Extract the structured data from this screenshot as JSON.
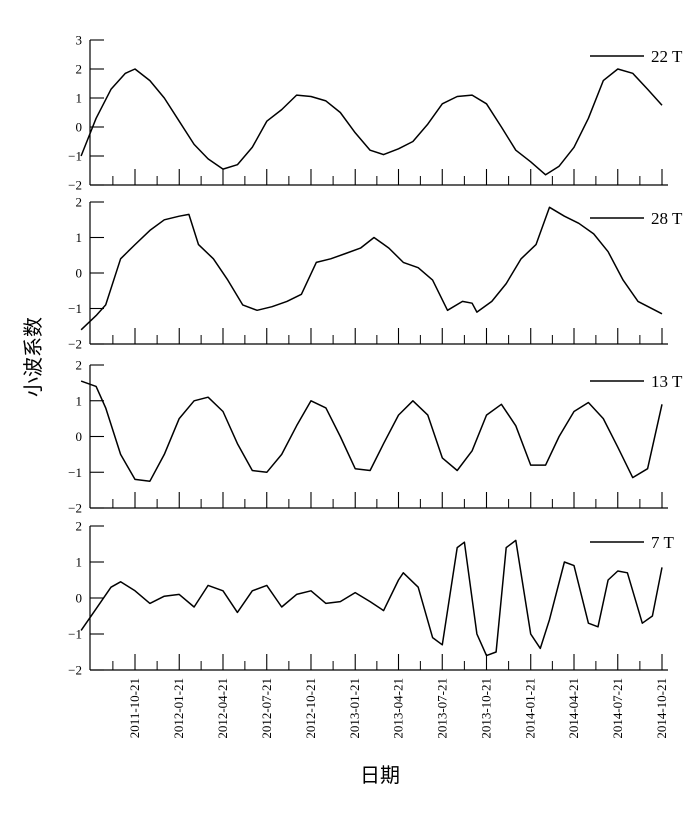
{
  "chart_data": {
    "type": "line",
    "xlabel": "日期",
    "ylabel": "小波系数",
    "x_ticks": [
      "2011-10-21",
      "2012-01-21",
      "2012-04-21",
      "2012-07-21",
      "2012-10-21",
      "2013-01-21",
      "2013-04-21",
      "2013-07-21",
      "2013-10-21",
      "2014-01-21",
      "2014-04-21",
      "2014-07-21",
      "2014-10-21"
    ],
    "x_range": [
      "2011-07-01",
      "2014-11-01"
    ],
    "legend_position": "top-right",
    "panels": [
      {
        "series_name": "22 T",
        "ylim": [
          -2,
          3
        ],
        "yticks": [
          -2,
          -1,
          0,
          1,
          2,
          3
        ],
        "points": [
          [
            "2011-07-01",
            -1.0
          ],
          [
            "2011-08-01",
            0.3
          ],
          [
            "2011-09-01",
            1.3
          ],
          [
            "2011-10-01",
            1.85
          ],
          [
            "2011-10-21",
            2.0
          ],
          [
            "2011-11-21",
            1.6
          ],
          [
            "2011-12-21",
            1.0
          ],
          [
            "2012-01-21",
            0.2
          ],
          [
            "2012-02-21",
            -0.6
          ],
          [
            "2012-03-21",
            -1.1
          ],
          [
            "2012-04-21",
            -1.45
          ],
          [
            "2012-05-21",
            -1.3
          ],
          [
            "2012-06-21",
            -0.7
          ],
          [
            "2012-07-21",
            0.2
          ],
          [
            "2012-08-21",
            0.6
          ],
          [
            "2012-09-21",
            1.1
          ],
          [
            "2012-10-21",
            1.05
          ],
          [
            "2012-11-21",
            0.9
          ],
          [
            "2012-12-21",
            0.5
          ],
          [
            "2013-01-21",
            -0.2
          ],
          [
            "2013-02-21",
            -0.8
          ],
          [
            "2013-03-21",
            -0.95
          ],
          [
            "2013-04-21",
            -0.75
          ],
          [
            "2013-05-21",
            -0.5
          ],
          [
            "2013-06-21",
            0.1
          ],
          [
            "2013-07-21",
            0.8
          ],
          [
            "2013-08-21",
            1.05
          ],
          [
            "2013-09-21",
            1.1
          ],
          [
            "2013-10-21",
            0.8
          ],
          [
            "2013-11-21",
            0.0
          ],
          [
            "2013-12-21",
            -0.8
          ],
          [
            "2014-01-21",
            -1.2
          ],
          [
            "2014-02-21",
            -1.65
          ],
          [
            "2014-03-21",
            -1.35
          ],
          [
            "2014-04-21",
            -0.7
          ],
          [
            "2014-05-21",
            0.3
          ],
          [
            "2014-06-21",
            1.6
          ],
          [
            "2014-07-21",
            2.0
          ],
          [
            "2014-08-21",
            1.85
          ],
          [
            "2014-09-21",
            1.3
          ],
          [
            "2014-10-21",
            0.75
          ]
        ]
      },
      {
        "series_name": "28 T",
        "ylim": [
          -2,
          2
        ],
        "yticks": [
          -2,
          -1,
          0,
          1,
          2
        ],
        "points": [
          [
            "2011-07-01",
            -1.6
          ],
          [
            "2011-08-01",
            -1.2
          ],
          [
            "2011-08-21",
            -0.9
          ],
          [
            "2011-09-21",
            0.4
          ],
          [
            "2011-10-21",
            0.8
          ],
          [
            "2011-11-21",
            1.2
          ],
          [
            "2011-12-21",
            1.5
          ],
          [
            "2012-01-21",
            1.6
          ],
          [
            "2012-02-10",
            1.65
          ],
          [
            "2012-03-01",
            0.8
          ],
          [
            "2012-04-01",
            0.4
          ],
          [
            "2012-05-01",
            -0.2
          ],
          [
            "2012-06-01",
            -0.9
          ],
          [
            "2012-07-01",
            -1.05
          ],
          [
            "2012-08-01",
            -0.95
          ],
          [
            "2012-09-01",
            -0.8
          ],
          [
            "2012-10-01",
            -0.6
          ],
          [
            "2012-11-01",
            0.3
          ],
          [
            "2012-12-01",
            0.4
          ],
          [
            "2013-01-01",
            0.55
          ],
          [
            "2013-02-01",
            0.7
          ],
          [
            "2013-03-01",
            1.0
          ],
          [
            "2013-04-01",
            0.7
          ],
          [
            "2013-05-01",
            0.3
          ],
          [
            "2013-06-01",
            0.15
          ],
          [
            "2013-07-01",
            -0.2
          ],
          [
            "2013-08-01",
            -1.05
          ],
          [
            "2013-09-01",
            -0.8
          ],
          [
            "2013-09-21",
            -0.85
          ],
          [
            "2013-10-01",
            -1.1
          ],
          [
            "2013-11-01",
            -0.8
          ],
          [
            "2013-12-01",
            -0.3
          ],
          [
            "2014-01-01",
            0.4
          ],
          [
            "2014-02-01",
            0.8
          ],
          [
            "2014-03-01",
            1.85
          ],
          [
            "2014-04-01",
            1.6
          ],
          [
            "2014-05-01",
            1.4
          ],
          [
            "2014-06-01",
            1.1
          ],
          [
            "2014-07-01",
            0.6
          ],
          [
            "2014-08-01",
            -0.2
          ],
          [
            "2014-09-01",
            -0.8
          ],
          [
            "2014-10-21",
            -1.15
          ]
        ]
      },
      {
        "series_name": "13 T",
        "ylim": [
          -2,
          2
        ],
        "yticks": [
          -2,
          -1,
          0,
          1,
          2
        ],
        "points": [
          [
            "2011-07-01",
            1.55
          ],
          [
            "2011-08-01",
            1.4
          ],
          [
            "2011-08-21",
            0.8
          ],
          [
            "2011-09-21",
            -0.5
          ],
          [
            "2011-10-21",
            -1.2
          ],
          [
            "2011-11-21",
            -1.25
          ],
          [
            "2011-12-21",
            -0.5
          ],
          [
            "2012-01-21",
            0.5
          ],
          [
            "2012-02-21",
            1.0
          ],
          [
            "2012-03-21",
            1.1
          ],
          [
            "2012-04-21",
            0.7
          ],
          [
            "2012-05-21",
            -0.2
          ],
          [
            "2012-06-21",
            -0.95
          ],
          [
            "2012-07-21",
            -1.0
          ],
          [
            "2012-08-21",
            -0.5
          ],
          [
            "2012-09-21",
            0.3
          ],
          [
            "2012-10-21",
            1.0
          ],
          [
            "2012-11-21",
            0.8
          ],
          [
            "2012-12-21",
            0.0
          ],
          [
            "2013-01-21",
            -0.9
          ],
          [
            "2013-02-21",
            -0.95
          ],
          [
            "2013-03-21",
            -0.2
          ],
          [
            "2013-04-21",
            0.6
          ],
          [
            "2013-05-21",
            1.0
          ],
          [
            "2013-06-21",
            0.6
          ],
          [
            "2013-07-21",
            -0.6
          ],
          [
            "2013-08-21",
            -0.95
          ],
          [
            "2013-09-21",
            -0.4
          ],
          [
            "2013-10-21",
            0.6
          ],
          [
            "2013-11-21",
            0.9
          ],
          [
            "2013-12-21",
            0.3
          ],
          [
            "2014-01-21",
            -0.8
          ],
          [
            "2014-02-21",
            -0.8
          ],
          [
            "2014-03-21",
            0.0
          ],
          [
            "2014-04-21",
            0.7
          ],
          [
            "2014-05-21",
            0.95
          ],
          [
            "2014-06-21",
            0.5
          ],
          [
            "2014-07-21",
            -0.3
          ],
          [
            "2014-08-21",
            -1.15
          ],
          [
            "2014-09-21",
            -0.9
          ],
          [
            "2014-10-21",
            0.9
          ]
        ]
      },
      {
        "series_name": "7 T",
        "ylim": [
          -2,
          2
        ],
        "yticks": [
          -2,
          -1,
          0,
          1,
          2
        ],
        "points": [
          [
            "2011-07-01",
            -0.9
          ],
          [
            "2011-08-01",
            -0.3
          ],
          [
            "2011-09-01",
            0.3
          ],
          [
            "2011-09-21",
            0.45
          ],
          [
            "2011-10-21",
            0.2
          ],
          [
            "2011-11-21",
            -0.15
          ],
          [
            "2011-12-21",
            0.05
          ],
          [
            "2012-01-21",
            0.1
          ],
          [
            "2012-02-21",
            -0.25
          ],
          [
            "2012-03-21",
            0.35
          ],
          [
            "2012-04-21",
            0.2
          ],
          [
            "2012-05-21",
            -0.4
          ],
          [
            "2012-06-21",
            0.2
          ],
          [
            "2012-07-21",
            0.35
          ],
          [
            "2012-08-21",
            -0.25
          ],
          [
            "2012-09-21",
            0.1
          ],
          [
            "2012-10-21",
            0.2
          ],
          [
            "2012-11-21",
            -0.15
          ],
          [
            "2012-12-21",
            -0.1
          ],
          [
            "2013-01-21",
            0.15
          ],
          [
            "2013-02-21",
            -0.1
          ],
          [
            "2013-03-21",
            -0.35
          ],
          [
            "2013-04-21",
            0.5
          ],
          [
            "2013-05-01",
            0.7
          ],
          [
            "2013-06-01",
            0.3
          ],
          [
            "2013-07-01",
            -1.1
          ],
          [
            "2013-07-21",
            -1.3
          ],
          [
            "2013-08-21",
            1.4
          ],
          [
            "2013-09-05",
            1.55
          ],
          [
            "2013-10-01",
            -1.0
          ],
          [
            "2013-10-21",
            -1.6
          ],
          [
            "2013-11-10",
            -1.5
          ],
          [
            "2013-12-01",
            1.4
          ],
          [
            "2013-12-21",
            1.6
          ],
          [
            "2014-01-21",
            -1.0
          ],
          [
            "2014-02-10",
            -1.4
          ],
          [
            "2014-03-01",
            -0.6
          ],
          [
            "2014-04-01",
            1.0
          ],
          [
            "2014-04-21",
            0.9
          ],
          [
            "2014-05-21",
            -0.7
          ],
          [
            "2014-06-10",
            -0.8
          ],
          [
            "2014-07-01",
            0.5
          ],
          [
            "2014-07-21",
            0.75
          ],
          [
            "2014-08-10",
            0.7
          ],
          [
            "2014-09-10",
            -0.7
          ],
          [
            "2014-10-01",
            -0.5
          ],
          [
            "2014-10-21",
            0.85
          ]
        ]
      }
    ]
  }
}
